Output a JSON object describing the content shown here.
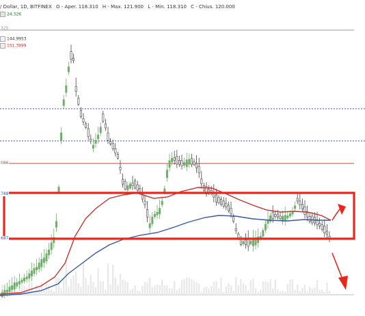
{
  "header": {
    "pair": "/ Dollar, 1D, BITFINEX",
    "open": "O - Aper. 118.310",
    "high": "H - Max. 121.900",
    "low": "L - Min. 118.310",
    "close": "C - Chius. 120.000"
  },
  "legend": {
    "volume": "24.32K",
    "ma_blue": "144.9953",
    "ma_red": "151.3999"
  },
  "levels": {
    "top": "325",
    "fib_086": "086",
    "fib_788": "788",
    "fib_687": "687"
  },
  "colors": {
    "bull": "#6fae6a",
    "bear": "#444444",
    "ma_blue": "#3656a8",
    "ma_red": "#c8302a",
    "box": "#e8261c",
    "dotted": "#3a4fd0",
    "fib": "#c84a3a",
    "volume": "#e9e9e9"
  },
  "icons": {
    "arrow_up": "arrow-up-right-icon",
    "arrow_down": "arrow-down-right-icon"
  }
}
